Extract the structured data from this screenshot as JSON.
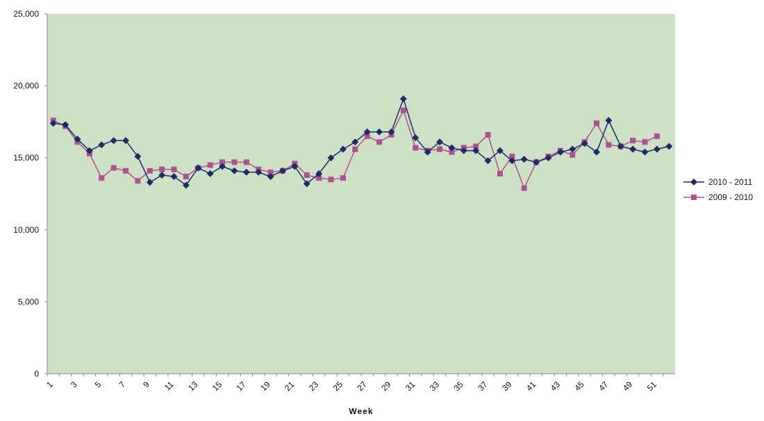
{
  "chart_data": {
    "type": "line",
    "x_label": "Week",
    "categories": [
      "1",
      null,
      "3",
      null,
      "5",
      null,
      "7",
      null,
      "9",
      null,
      "11",
      null,
      "13",
      null,
      "15",
      null,
      "17",
      null,
      "19",
      null,
      "21",
      null,
      "23",
      null,
      "25",
      null,
      "27",
      null,
      "29",
      null,
      "31",
      null,
      "33",
      null,
      "35",
      null,
      "37",
      null,
      "39",
      null,
      "41",
      null,
      "43",
      null,
      "45",
      null,
      "47",
      null,
      "49",
      null,
      "51",
      null
    ],
    "series": [
      {
        "name": "2010 - 2011",
        "color": "#1f2a6b",
        "marker": "diamond",
        "values": [
          17400,
          17300,
          16300,
          15500,
          15900,
          16200,
          16200,
          15100,
          13300,
          13800,
          13700,
          13100,
          14300,
          13900,
          14400,
          14100,
          14000,
          14000,
          13700,
          14100,
          14400,
          13200,
          13900,
          15000,
          15600,
          16100,
          16800,
          16800,
          16800,
          19100,
          16400,
          15400,
          16100,
          15700,
          15500,
          15500,
          14800,
          15500,
          14800,
          14900,
          14700,
          15000,
          15400,
          15600,
          16000,
          15400,
          17600,
          15800,
          15600,
          15400,
          15600,
          15800
        ]
      },
      {
        "name": "2009 - 2010",
        "color": "#b0508f",
        "marker": "square",
        "values": [
          17600,
          17200,
          16100,
          15300,
          13600,
          14300,
          14100,
          13400,
          14100,
          14200,
          14200,
          13700,
          14300,
          14500,
          14700,
          14700,
          14700,
          14200,
          14000,
          14100,
          14600,
          13800,
          13600,
          13500,
          13600,
          15600,
          16500,
          16100,
          16600,
          18300,
          15700,
          15500,
          15600,
          15400,
          15700,
          15800,
          16600,
          13900,
          15100,
          12900,
          14700,
          15100,
          15500,
          15200,
          16100,
          17400,
          15900,
          15800,
          16200,
          16100,
          16500,
          null
        ]
      }
    ],
    "ylim": [
      0,
      25000
    ],
    "yticks": [
      0,
      {
        "value": 5000,
        "label": "5,000"
      },
      {
        "value": 10000,
        "label": "10,000"
      },
      {
        "value": 15000,
        "label": "15,000"
      },
      {
        "value": 20000,
        "label": "20,000"
      },
      {
        "value": 25000,
        "label": "25,000"
      }
    ],
    "plot_background": "#cde1c5",
    "legend": "right"
  }
}
